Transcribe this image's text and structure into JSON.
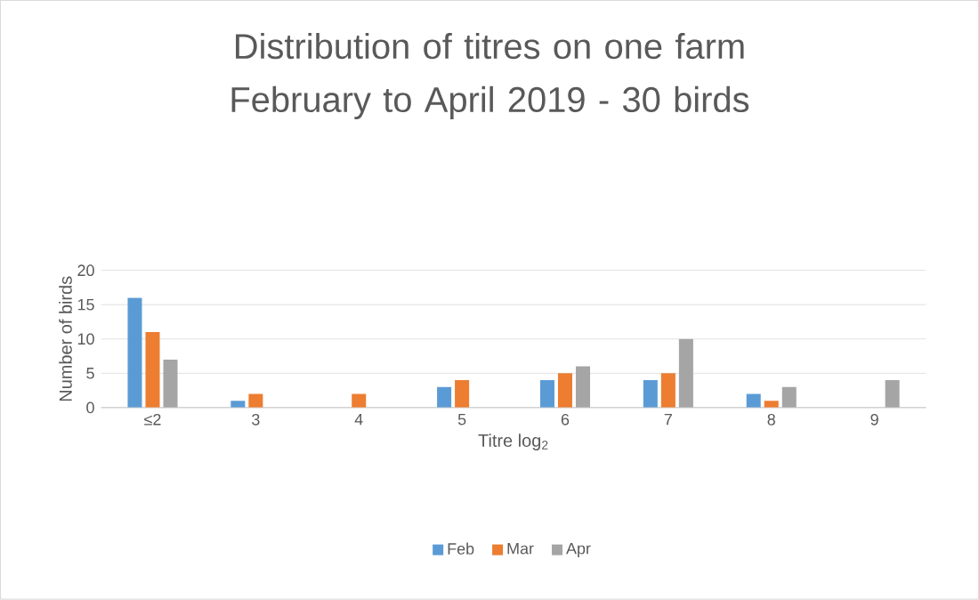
{
  "chart_data": {
    "type": "bar",
    "title": "Distribution of titres on one farm February to April 2019 - 30 birds",
    "xlabel": "Titre log$_{2}$",
    "ylabel": "Number of birds",
    "categories": [
      "≤2",
      "3",
      "4",
      "5",
      "6",
      "7",
      "8",
      "9"
    ],
    "series": [
      {
        "name": "Feb",
        "color": "#5b9bd5",
        "values": [
          16,
          1,
          0,
          3,
          4,
          4,
          2,
          0
        ]
      },
      {
        "name": "Mar",
        "color": "#ed7d31",
        "values": [
          11,
          2,
          2,
          4,
          5,
          5,
          1,
          0
        ]
      },
      {
        "name": "Apr",
        "color": "#a5a5a5",
        "values": [
          7,
          0,
          0,
          0,
          6,
          10,
          3,
          4
        ]
      }
    ],
    "ylim": [
      0,
      20
    ],
    "yticks": [
      0,
      5,
      10,
      15,
      20
    ],
    "grid": "y",
    "legend": "bottom"
  }
}
